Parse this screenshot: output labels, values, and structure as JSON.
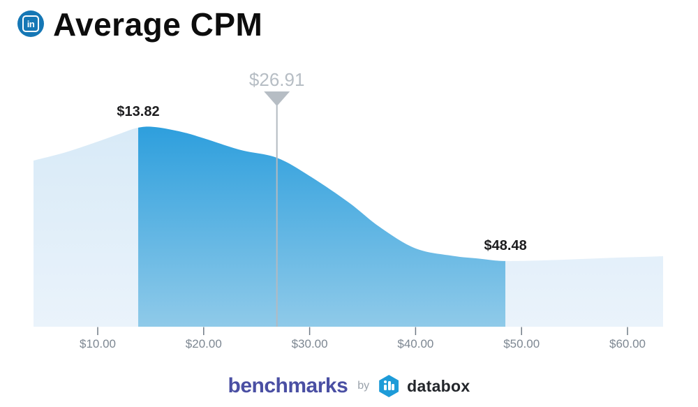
{
  "header": {
    "icon": "linkedin-icon",
    "title": "Average CPM"
  },
  "chart_data": {
    "type": "area",
    "title": "Average CPM",
    "x_unit": "USD",
    "x_range": [
      3.94,
      63.36
    ],
    "grid": false,
    "legend": "none",
    "x_tick_values": [
      10,
      20,
      30,
      40,
      50,
      60
    ],
    "x_tick_labels": [
      "$10.00",
      "$20.00",
      "$30.00",
      "$40.00",
      "$50.00",
      "$60.00"
    ],
    "markers": {
      "lower_quartile": {
        "value": 13.82,
        "label": "$13.82"
      },
      "median": {
        "value": 26.91,
        "label": "$26.91"
      },
      "upper_quartile": {
        "value": 48.48,
        "label": "$48.48"
      }
    },
    "curve_points": [
      [
        3.94,
        0.832
      ],
      [
        7,
        0.874
      ],
      [
        10,
        0.927
      ],
      [
        12,
        0.965
      ],
      [
        13.82,
        0.997
      ],
      [
        15.4,
        1.0
      ],
      [
        18,
        0.975
      ],
      [
        20,
        0.944
      ],
      [
        23.5,
        0.885
      ],
      [
        26.91,
        0.846
      ],
      [
        30,
        0.755
      ],
      [
        33.7,
        0.622
      ],
      [
        36.6,
        0.5
      ],
      [
        40,
        0.392
      ],
      [
        43.5,
        0.355
      ],
      [
        46,
        0.341
      ],
      [
        48.48,
        0.329
      ],
      [
        53,
        0.334
      ],
      [
        58,
        0.344
      ],
      [
        63.36,
        0.353
      ]
    ]
  },
  "footer": {
    "benchmarks_label": "benchmarks",
    "by_label": "by",
    "databox_label": "databox"
  },
  "colors": {
    "linkedin_blue": "#1577b5",
    "highlight_fill_top": "#2e9fdd",
    "highlight_fill_bottom": "#8fcae9",
    "tail_fill_top": "#d8eaf7",
    "tail_fill_bottom": "#eaf3fb",
    "median_marker": "#b6bdc4",
    "median_line": "#b3bac1",
    "tick_mark": "#6f7a85",
    "axis_text": "#7d8792",
    "title_text": "#0d0d0d",
    "benchmarks_brand": "#4a4fa3",
    "databox_blue": "#1d9bd8"
  }
}
